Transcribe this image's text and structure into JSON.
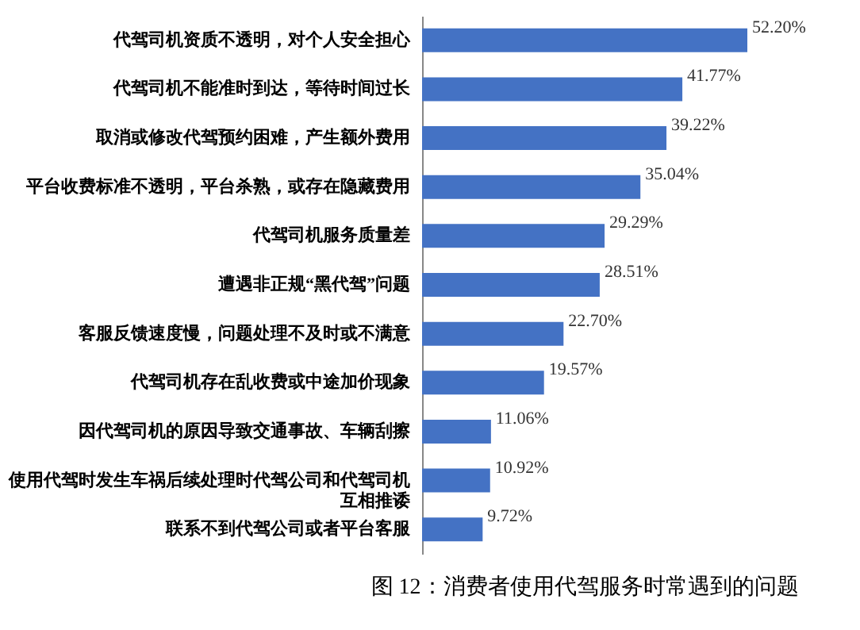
{
  "chart_data": {
    "type": "bar",
    "orientation": "horizontal",
    "title": "图 12：消费者使用代驾服务时常遇到的问题",
    "categories": [
      "代驾司机资质不透明，对个人安全担心",
      "代驾司机不能准时到达，等待时间过长",
      "取消或修改代驾预约困难，产生额外费用",
      "平台收费标准不透明，平台杀熟，或存在隐藏费用",
      "代驾司机服务质量差",
      "遭遇非正规“黑代驾”问题",
      "客服反馈速度慢，问题处理不及时或不满意",
      "代驾司机存在乱收费或中途加价现象",
      "因代驾司机的原因导致交通事故、车辆刮擦",
      "使用代驾时发生车祸后续处理时代驾公司和代驾司机互相推诿",
      "联系不到代驾公司或者平台客服"
    ],
    "values": [
      52.2,
      41.77,
      39.22,
      35.04,
      29.29,
      28.51,
      22.7,
      19.57,
      11.06,
      10.92,
      9.72
    ],
    "value_labels": [
      "52.20%",
      "41.77%",
      "39.22%",
      "35.04%",
      "29.29%",
      "28.51%",
      "22.70%",
      "19.57%",
      "11.06%",
      "10.92%",
      "9.72%"
    ],
    "color": "#4472c4",
    "tick_labels": "y",
    "grid": false
  }
}
